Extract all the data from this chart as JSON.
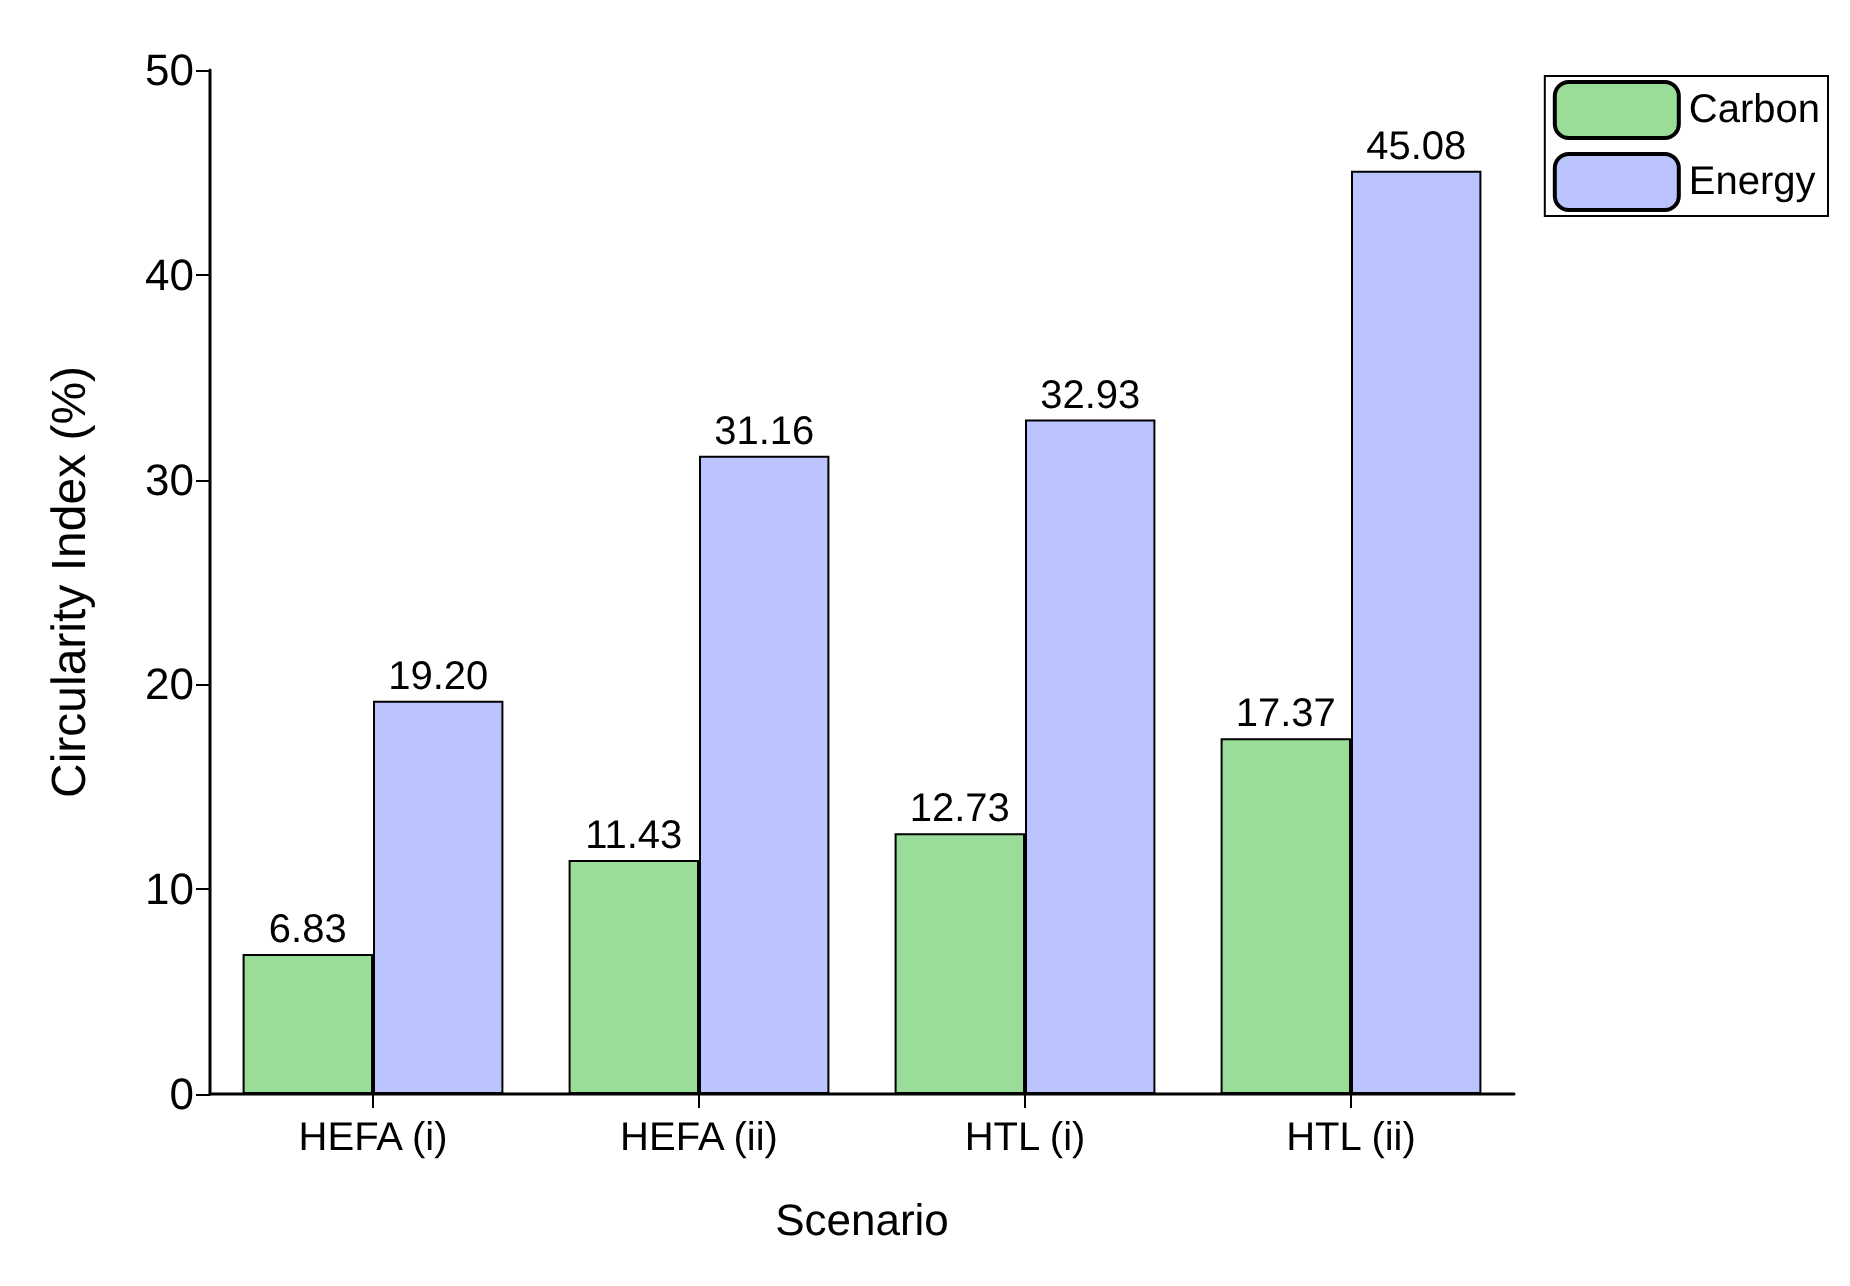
{
  "chart_data": {
    "type": "bar",
    "xlabel": "Scenario",
    "ylabel": "Circularity Index (%)",
    "categories": [
      "HEFA (i)",
      "HEFA (ii)",
      "HTL (i)",
      "HTL (ii)"
    ],
    "series": [
      {
        "name": "Carbon",
        "color": "#99dd99",
        "values": [
          6.83,
          11.43,
          12.73,
          17.37
        ],
        "value_labels": [
          "6.83",
          "11.43",
          "12.73",
          "17.37"
        ]
      },
      {
        "name": "Energy",
        "color": "#bbc4ff",
        "values": [
          19.2,
          31.16,
          32.93,
          45.08
        ],
        "value_labels": [
          "19.20",
          "31.16",
          "32.93",
          "45.08"
        ]
      }
    ],
    "ylim": [
      0,
      50
    ],
    "yticks": [
      0,
      10,
      20,
      30,
      40,
      50
    ],
    "grid": false,
    "legend": "top right"
  }
}
